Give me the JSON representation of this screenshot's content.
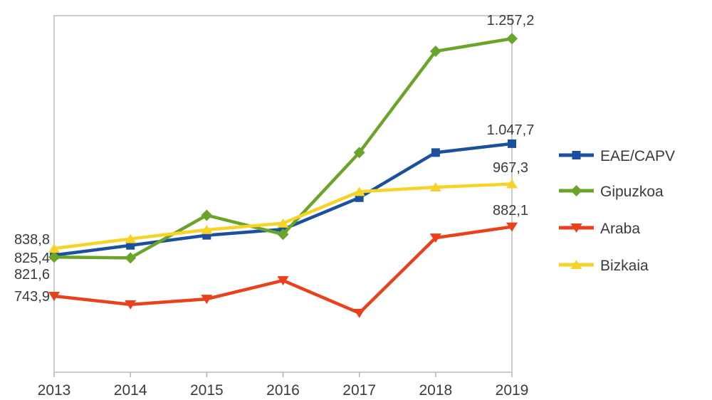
{
  "figure": {
    "background": "#ffffff",
    "border_color": "#c6c6c6",
    "tick_color": "#b5b5b5",
    "text_color": "#3b3b3b"
  },
  "chart_data": {
    "type": "line",
    "title": "",
    "xlabel": "",
    "ylabel": "",
    "x": [
      "2013",
      "2014",
      "2015",
      "2016",
      "2017",
      "2018",
      "2019"
    ],
    "ylim": [
      592,
      1303
    ],
    "grid": false,
    "legend_position": "right",
    "series": [
      {
        "name": "EAE/CAPV",
        "color": "#1b519c",
        "marker": "square",
        "values": [
          825.4,
          845,
          865,
          877,
          940,
          1030,
          1047.7
        ],
        "first_label": "825,4",
        "last_label": "1.047,7"
      },
      {
        "name": "Gipuzkoa",
        "color": "#6aa42b",
        "marker": "diamond",
        "values": [
          821.6,
          820,
          905,
          867,
          1030,
          1232,
          1257.2
        ],
        "first_label": "821,6",
        "last_label": "1.257,2"
      },
      {
        "name": "Araba",
        "color": "#e8411c",
        "marker": "triangle-down",
        "values": [
          743.9,
          727,
          738,
          775,
          710,
          860,
          882.1
        ],
        "first_label": "743,9",
        "last_label": "882,1"
      },
      {
        "name": "Bizkaia",
        "color": "#f7d328",
        "marker": "triangle-up",
        "values": [
          838.8,
          858,
          876,
          889,
          952,
          961,
          967.3
        ],
        "first_label": "838,8",
        "last_label": "967,3"
      }
    ],
    "legend": [
      "EAE/CAPV",
      "Gipuzkoa",
      "Araba",
      "Bizkaia"
    ]
  }
}
